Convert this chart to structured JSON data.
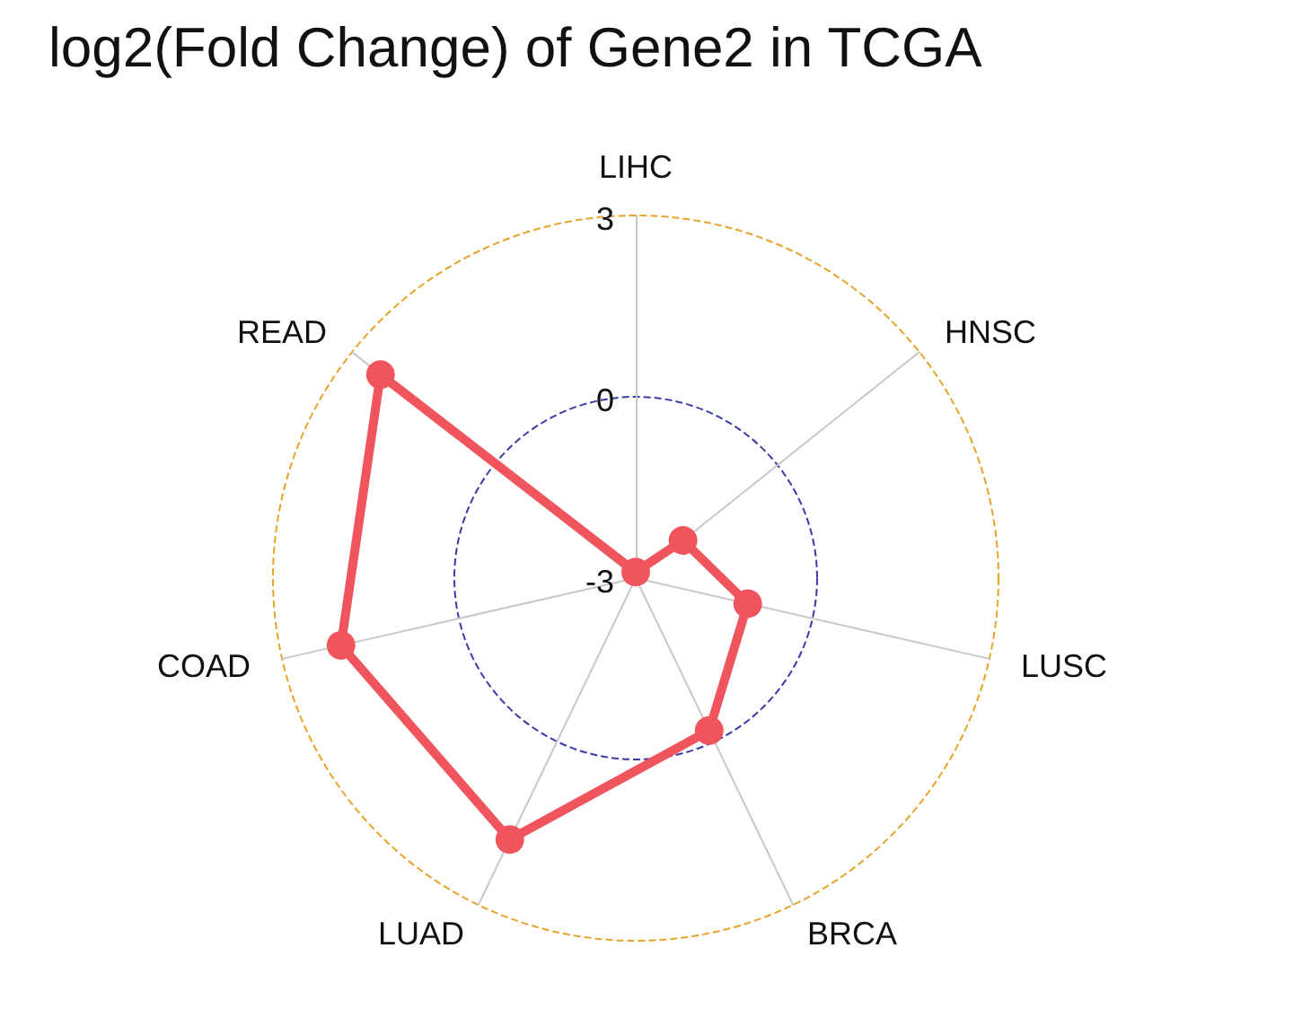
{
  "chart_data": {
    "type": "radar",
    "title": "log2(Fold Change) of Gene2 in TCGA",
    "categories": [
      "LIHC",
      "HNSC",
      "LUSC",
      "BRCA",
      "LUAD",
      "COAD",
      "READ"
    ],
    "series": [
      {
        "color": "#f0555e",
        "values": [
          -2.9,
          -2.0,
          -1.1,
          -0.2,
          1.8,
          2.0,
          2.4
        ]
      }
    ],
    "ylim": [
      -3,
      3
    ],
    "yticks": [
      -3,
      0,
      3
    ],
    "grid": true,
    "marker": "circle",
    "line_style": "solid"
  }
}
